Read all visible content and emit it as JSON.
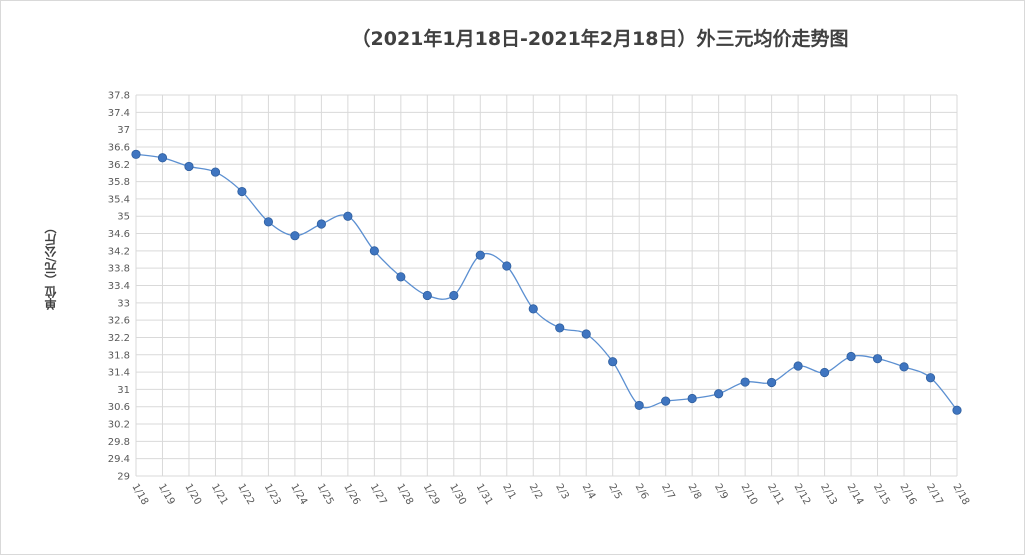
{
  "chart_data": {
    "type": "line",
    "title": "（2021年1月18日-2021年2月18日）外三元均价走势图",
    "ylabel": "单位（元/公斤）",
    "xlabel": "",
    "ylim": [
      29,
      37.8
    ],
    "ystep": 0.4,
    "grid": true,
    "legend": "none",
    "line_color": "#5b8fd1",
    "marker_color": "#3f75c0",
    "categories": [
      "1/18",
      "1/19",
      "1/20",
      "1/21",
      "1/22",
      "1/23",
      "1/24",
      "1/25",
      "1/26",
      "1/27",
      "1/28",
      "1/29",
      "1/30",
      "1/31",
      "2/1",
      "2/2",
      "2/3",
      "2/4",
      "2/5",
      "2/6",
      "2/7",
      "2/8",
      "2/9",
      "2/10",
      "2/11",
      "2/12",
      "2/13",
      "2/14",
      "2/15",
      "2/16",
      "2/17",
      "2/18"
    ],
    "series": [
      {
        "values": [
          36.43,
          36.35,
          36.15,
          36.02,
          35.57,
          34.87,
          34.55,
          34.82,
          35.0,
          34.2,
          33.6,
          33.17,
          33.17,
          34.1,
          33.85,
          32.86,
          32.42,
          32.28,
          31.64,
          30.63,
          30.73,
          30.79,
          30.9,
          31.17,
          31.16,
          31.54,
          31.39,
          31.76,
          31.71,
          31.52,
          31.27,
          30.52
        ]
      }
    ]
  }
}
